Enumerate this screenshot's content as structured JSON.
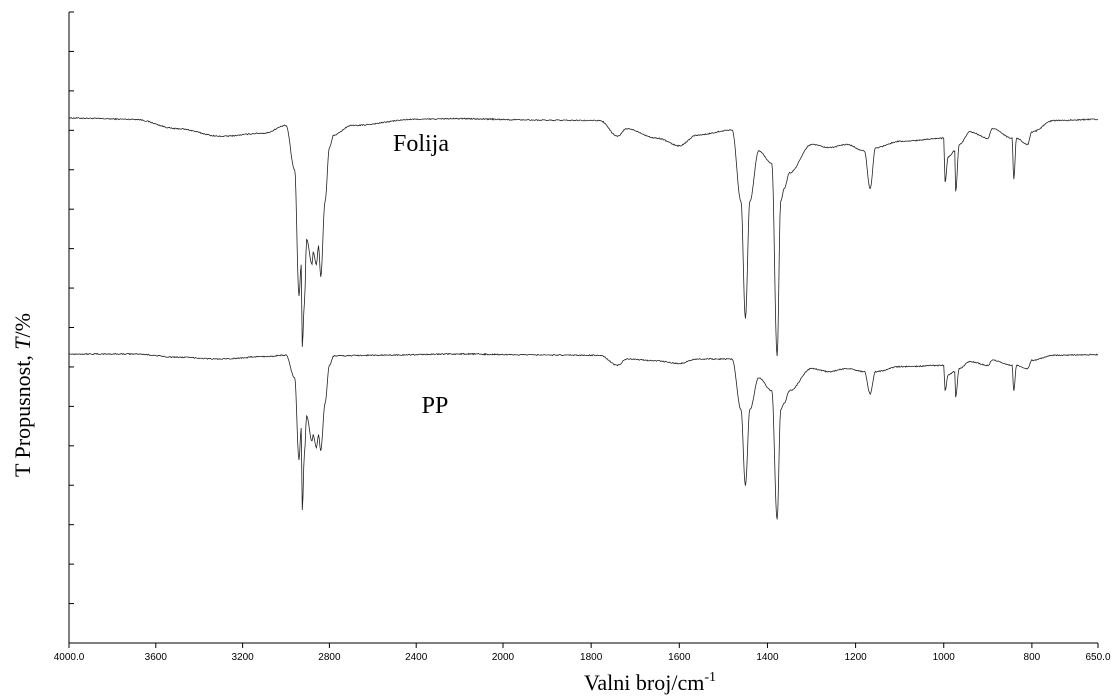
{
  "chart_data": {
    "type": "line",
    "xlabel": "Valni broj/cm",
    "xlabel_superscript": "-1",
    "ylabel_prefix": "T Propusnost, ",
    "ylabel_italic": "T",
    "ylabel_suffix": "/%",
    "x_reversed": true,
    "xlim": [
      4000,
      650
    ],
    "x_ticks": [
      {
        "value": 4000,
        "label": "4000.0"
      },
      {
        "value": 3600,
        "label": "3600"
      },
      {
        "value": 3200,
        "label": "3200"
      },
      {
        "value": 2800,
        "label": "2800"
      },
      {
        "value": 2400,
        "label": "2400"
      },
      {
        "value": 2000,
        "label": "2000"
      },
      {
        "value": 1800,
        "label": "1800"
      },
      {
        "value": 1600,
        "label": "1600"
      },
      {
        "value": 1400,
        "label": "1400"
      },
      {
        "value": 1200,
        "label": "1200"
      },
      {
        "value": 1000,
        "label": "1000"
      },
      {
        "value": 800,
        "label": "800"
      },
      {
        "value": 650,
        "label": "650.0"
      }
    ],
    "ylim": [
      0,
      100
    ],
    "y_tick_count": 17,
    "grid": false,
    "series": [
      {
        "name": "Folija",
        "baseline": 82.5,
        "points": [
          [
            4000,
            83.2
          ],
          [
            3700,
            83.0
          ],
          [
            3500,
            81.5
          ],
          [
            3300,
            80.3
          ],
          [
            3100,
            80.8
          ],
          [
            3000,
            82.0
          ],
          [
            2960,
            75.0
          ],
          [
            2940,
            55.0
          ],
          [
            2930,
            60.0
          ],
          [
            2925,
            47.0
          ],
          [
            2915,
            54.0
          ],
          [
            2905,
            64.0
          ],
          [
            2880,
            60.0
          ],
          [
            2875,
            62.0
          ],
          [
            2860,
            60.0
          ],
          [
            2850,
            63.0
          ],
          [
            2840,
            58.0
          ],
          [
            2820,
            70.0
          ],
          [
            2800,
            78.5
          ],
          [
            2780,
            80.5
          ],
          [
            2700,
            82.0
          ],
          [
            2400,
            83.0
          ],
          [
            2200,
            83.1
          ],
          [
            1780,
            82.8
          ],
          [
            1740,
            80.3
          ],
          [
            1720,
            81.5
          ],
          [
            1650,
            80.0
          ],
          [
            1600,
            78.8
          ],
          [
            1560,
            80.5
          ],
          [
            1480,
            81.3
          ],
          [
            1460,
            70.0
          ],
          [
            1450,
            51.5
          ],
          [
            1440,
            70.0
          ],
          [
            1420,
            78.0
          ],
          [
            1390,
            76.0
          ],
          [
            1378,
            45.5
          ],
          [
            1370,
            70.0
          ],
          [
            1362,
            72.0
          ],
          [
            1350,
            74.5
          ],
          [
            1300,
            79.0
          ],
          [
            1260,
            78.5
          ],
          [
            1220,
            79.0
          ],
          [
            1180,
            78.0
          ],
          [
            1167,
            72.0
          ],
          [
            1155,
            78.5
          ],
          [
            1100,
            79.5
          ],
          [
            1000,
            80.0
          ],
          [
            997,
            73.0
          ],
          [
            990,
            77.0
          ],
          [
            975,
            78.0
          ],
          [
            973,
            71.5
          ],
          [
            965,
            79.0
          ],
          [
            940,
            81.0
          ],
          [
            900,
            80.0
          ],
          [
            890,
            81.5
          ],
          [
            845,
            80.0
          ],
          [
            841,
            73.5
          ],
          [
            835,
            80.0
          ],
          [
            810,
            79.0
          ],
          [
            800,
            81.0
          ],
          [
            750,
            82.8
          ],
          [
            650,
            83.0
          ]
        ]
      },
      {
        "name": "PP",
        "baseline": 45.7,
        "points": [
          [
            4000,
            45.8
          ],
          [
            3700,
            45.8
          ],
          [
            3500,
            45.3
          ],
          [
            3300,
            45.0
          ],
          [
            3100,
            45.4
          ],
          [
            3000,
            45.6
          ],
          [
            2960,
            42.0
          ],
          [
            2940,
            29.0
          ],
          [
            2930,
            34.0
          ],
          [
            2925,
            21.0
          ],
          [
            2915,
            30.0
          ],
          [
            2905,
            36.0
          ],
          [
            2880,
            32.0
          ],
          [
            2875,
            33.0
          ],
          [
            2860,
            31.0
          ],
          [
            2850,
            33.0
          ],
          [
            2840,
            30.5
          ],
          [
            2820,
            38.0
          ],
          [
            2800,
            44.0
          ],
          [
            2780,
            45.5
          ],
          [
            2600,
            45.6
          ],
          [
            2200,
            45.8
          ],
          [
            1780,
            45.6
          ],
          [
            1740,
            44.0
          ],
          [
            1720,
            45.0
          ],
          [
            1650,
            44.7
          ],
          [
            1600,
            44.3
          ],
          [
            1560,
            45.0
          ],
          [
            1480,
            45.0
          ],
          [
            1460,
            37.0
          ],
          [
            1450,
            25.0
          ],
          [
            1440,
            37.0
          ],
          [
            1420,
            42.0
          ],
          [
            1390,
            40.0
          ],
          [
            1378,
            19.5
          ],
          [
            1370,
            37.0
          ],
          [
            1362,
            38.0
          ],
          [
            1350,
            40.0
          ],
          [
            1300,
            43.5
          ],
          [
            1260,
            43.0
          ],
          [
            1220,
            43.5
          ],
          [
            1180,
            43.0
          ],
          [
            1167,
            39.5
          ],
          [
            1155,
            43.0
          ],
          [
            1100,
            43.8
          ],
          [
            1000,
            44.0
          ],
          [
            997,
            40.0
          ],
          [
            990,
            42.5
          ],
          [
            975,
            43.0
          ],
          [
            973,
            39.0
          ],
          [
            965,
            43.5
          ],
          [
            940,
            44.6
          ],
          [
            900,
            44.0
          ],
          [
            890,
            44.8
          ],
          [
            845,
            44.0
          ],
          [
            841,
            40.0
          ],
          [
            835,
            44.0
          ],
          [
            810,
            43.5
          ],
          [
            800,
            44.8
          ],
          [
            750,
            45.6
          ],
          [
            650,
            45.7
          ]
        ]
      }
    ],
    "annotations": [
      {
        "text": "Folija",
        "series": "Folija"
      },
      {
        "text": "PP",
        "series": "PP"
      }
    ]
  }
}
